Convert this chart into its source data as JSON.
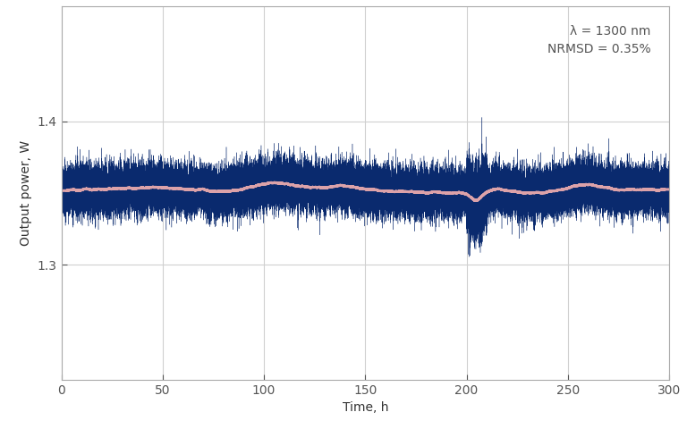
{
  "xlim": [
    0,
    300
  ],
  "ylim": [
    1.22,
    1.48
  ],
  "xlabel": "Time, h",
  "ylabel": "Output power, W",
  "annotation_line1": "λ = 1300 nm",
  "annotation_line2": "NRMSD = 0.35%",
  "mean_power": 1.352,
  "noise_std": 0.008,
  "line_color_noisy": "#0a2a6e",
  "line_color_smooth": "#f4b0b0",
  "background_color": "#ffffff",
  "grid_color": "#d0d0d0",
  "yticks": [
    1.3,
    1.4
  ],
  "xticks": [
    0,
    50,
    100,
    150,
    200,
    250,
    300
  ],
  "n_points": 60000,
  "seed": 7
}
